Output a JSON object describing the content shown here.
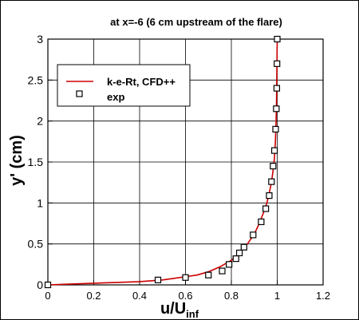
{
  "chart_data": {
    "type": "line",
    "title": "at x=-6 (6 cm upstream of the flare)",
    "xlabel": "u/U",
    "xlabel_subscript": "inf",
    "ylabel": "y' (cm)",
    "xlim": [
      0,
      1.2
    ],
    "ylim": [
      0,
      3
    ],
    "xticks": [
      0,
      0.2,
      0.4,
      0.6,
      0.8,
      1,
      1.2
    ],
    "yticks": [
      0,
      0.5,
      1,
      1.5,
      2,
      2.5,
      3
    ],
    "xtick_labels": [
      "0",
      "0.2",
      "0.4",
      "0.6",
      "0.8",
      "1",
      "1.2"
    ],
    "ytick_labels": [
      "0",
      "0.5",
      "1",
      "1.5",
      "2",
      "2.5",
      "3"
    ],
    "grid": true,
    "legend_position": "upper-left",
    "colors": {
      "line": "#cc0000",
      "marker": "#000000",
      "grid": "#000000"
    },
    "series": [
      {
        "name": "k-e-Rt, CFD++",
        "kind": "line",
        "x": [
          0,
          0.1,
          0.2,
          0.3,
          0.4,
          0.5,
          0.55,
          0.6,
          0.65,
          0.7,
          0.75,
          0.8,
          0.84,
          0.87,
          0.9,
          0.92,
          0.94,
          0.955,
          0.965,
          0.975,
          0.982,
          0.988,
          0.992,
          0.995,
          0.997,
          0.998,
          0.999,
          1.0
        ],
        "y": [
          0,
          0.01,
          0.02,
          0.03,
          0.04,
          0.06,
          0.08,
          0.1,
          0.12,
          0.16,
          0.22,
          0.3,
          0.4,
          0.5,
          0.62,
          0.74,
          0.88,
          1.0,
          1.12,
          1.25,
          1.4,
          1.55,
          1.75,
          2.0,
          2.25,
          2.5,
          2.75,
          3.0
        ]
      },
      {
        "name": "exp",
        "kind": "marker",
        "marker": "square",
        "x": [
          0,
          0.48,
          0.6,
          0.7,
          0.76,
          0.79,
          0.82,
          0.835,
          0.855,
          0.895,
          0.93,
          0.95,
          0.965,
          0.975,
          0.982,
          0.988,
          0.993,
          0.996,
          0.998,
          0.999,
          1.0
        ],
        "y": [
          0,
          0.06,
          0.09,
          0.12,
          0.17,
          0.25,
          0.32,
          0.39,
          0.46,
          0.61,
          0.77,
          0.93,
          1.09,
          1.26,
          1.45,
          1.64,
          1.9,
          2.15,
          2.4,
          2.7,
          3.0
        ]
      }
    ]
  }
}
